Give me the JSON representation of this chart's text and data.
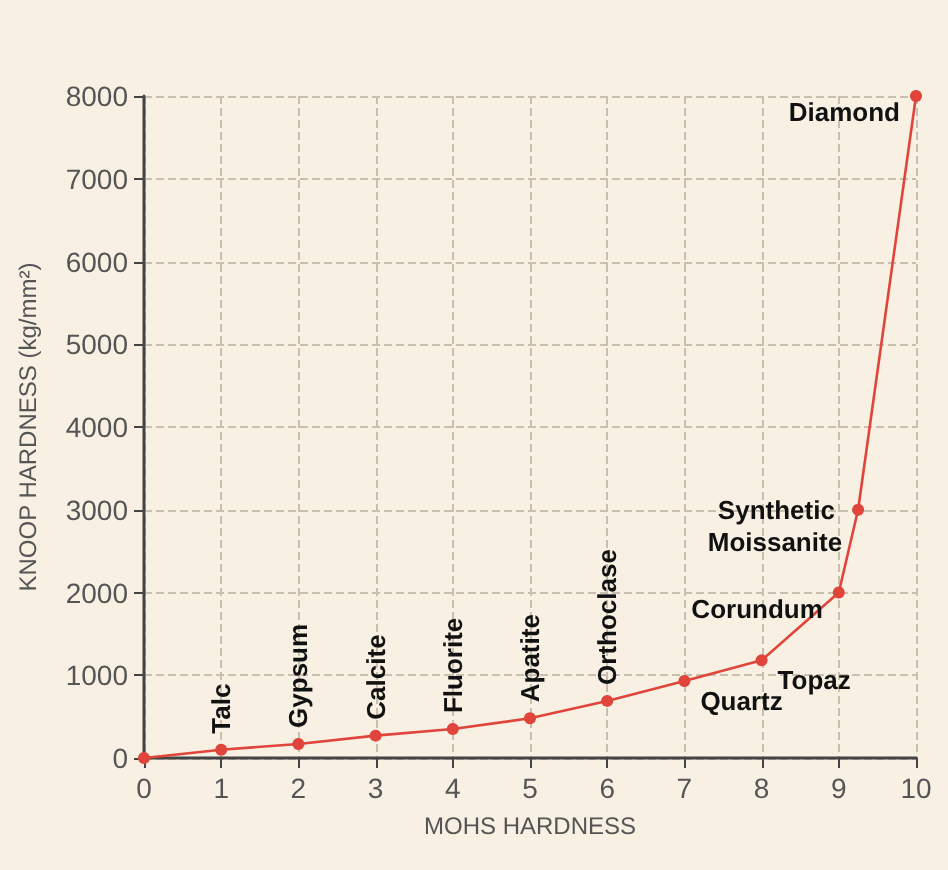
{
  "chart_data": {
    "type": "line",
    "xlabel": "MOHS HARDNESS",
    "ylabel": "KNOOP HARDNESS (kg/mm²)",
    "series": [
      {
        "color": "#e0443a",
        "x": [
          0,
          1,
          2,
          3,
          4,
          5,
          6,
          7,
          8,
          9,
          9.25,
          10
        ],
        "values": [
          0,
          100,
          170,
          270,
          350,
          480,
          690,
          930,
          1180,
          2000,
          3000,
          8000
        ]
      }
    ],
    "xlim": [
      0,
      10
    ],
    "xticks": [
      0,
      1,
      2,
      3,
      4,
      5,
      6,
      7,
      8,
      9,
      10
    ],
    "ylim": [
      0,
      8000
    ],
    "yticks": [
      0,
      1000,
      2000,
      3000,
      4000,
      5000,
      6000,
      7000,
      8000
    ],
    "grid": true,
    "marker": "circle",
    "line_style": "solid",
    "annotations": [
      {
        "text": "Talc",
        "x": 1,
        "y": 100
      },
      {
        "text": "Gypsum",
        "x": 2,
        "y": 170
      },
      {
        "text": "Calcite",
        "x": 3,
        "y": 270
      },
      {
        "text": "Fluorite",
        "x": 4,
        "y": 350
      },
      {
        "text": "Apatite",
        "x": 5,
        "y": 480
      },
      {
        "text": "Orthoclase",
        "x": 6,
        "y": 690
      },
      {
        "text": "Quartz",
        "x": 7,
        "y": 930
      },
      {
        "text": "Topaz",
        "x": 8,
        "y": 1180
      },
      {
        "text": "Corundum",
        "x": 9,
        "y": 2000
      },
      {
        "text": "Synthetic Moissanite",
        "x": 9.25,
        "y": 3000
      },
      {
        "text": "Diamond",
        "x": 10,
        "y": 8000
      }
    ]
  }
}
